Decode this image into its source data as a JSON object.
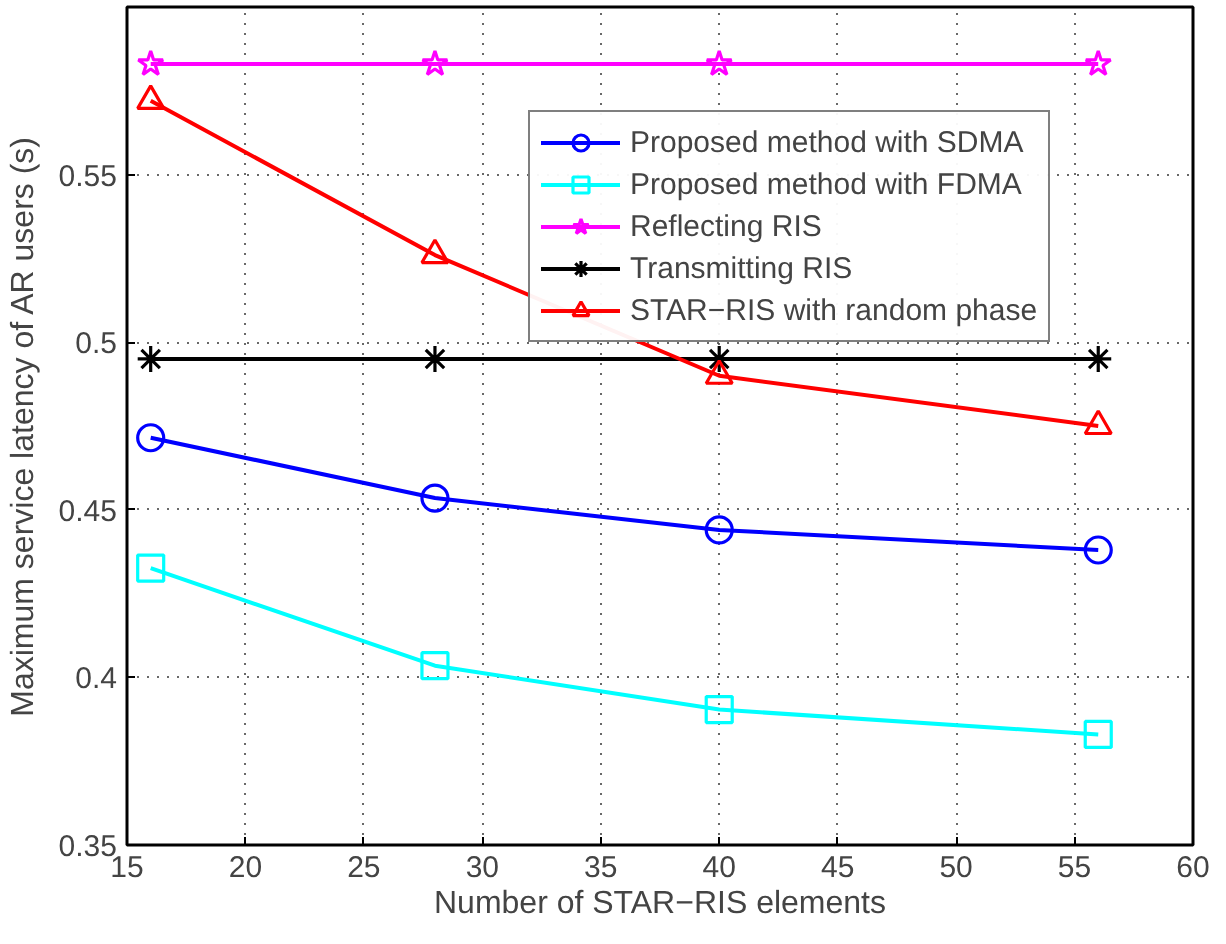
{
  "chart_data": {
    "type": "line",
    "xlabel": "Number of STAR−RIS elements",
    "ylabel": "Maximum service latency of AR users (s)",
    "x": [
      16,
      28,
      40,
      56
    ],
    "series": [
      {
        "name": "Proposed method with SDMA",
        "color": "#0000ff",
        "marker": "circle",
        "values": [
          0.4715,
          0.4535,
          0.444,
          0.438
        ]
      },
      {
        "name": "Proposed method with FDMA",
        "color": "#00ffff",
        "marker": "square",
        "values": [
          0.4326,
          0.4035,
          0.3904,
          0.383
        ]
      },
      {
        "name": "Reflecting RIS",
        "color": "#ff00ff",
        "marker": "star",
        "values": [
          0.583,
          0.583,
          0.583,
          0.583
        ]
      },
      {
        "name": "Transmitting RIS",
        "color": "#000000",
        "marker": "cross",
        "values": [
          0.495,
          0.495,
          0.495,
          0.495
        ]
      },
      {
        "name": "STAR−RIS with random phase",
        "color": "#ff0000",
        "marker": "triangle",
        "values": [
          0.572,
          0.526,
          0.49,
          0.475
        ]
      }
    ],
    "xlim": [
      15,
      60
    ],
    "xticks": [
      15,
      20,
      25,
      30,
      35,
      40,
      45,
      50,
      55,
      60
    ],
    "ylim": [
      0.35,
      0.6
    ],
    "yticks": [
      0.35,
      0.4,
      0.45,
      0.5,
      0.55
    ],
    "grid": true,
    "legend": "top right",
    "line_style": "solid"
  }
}
